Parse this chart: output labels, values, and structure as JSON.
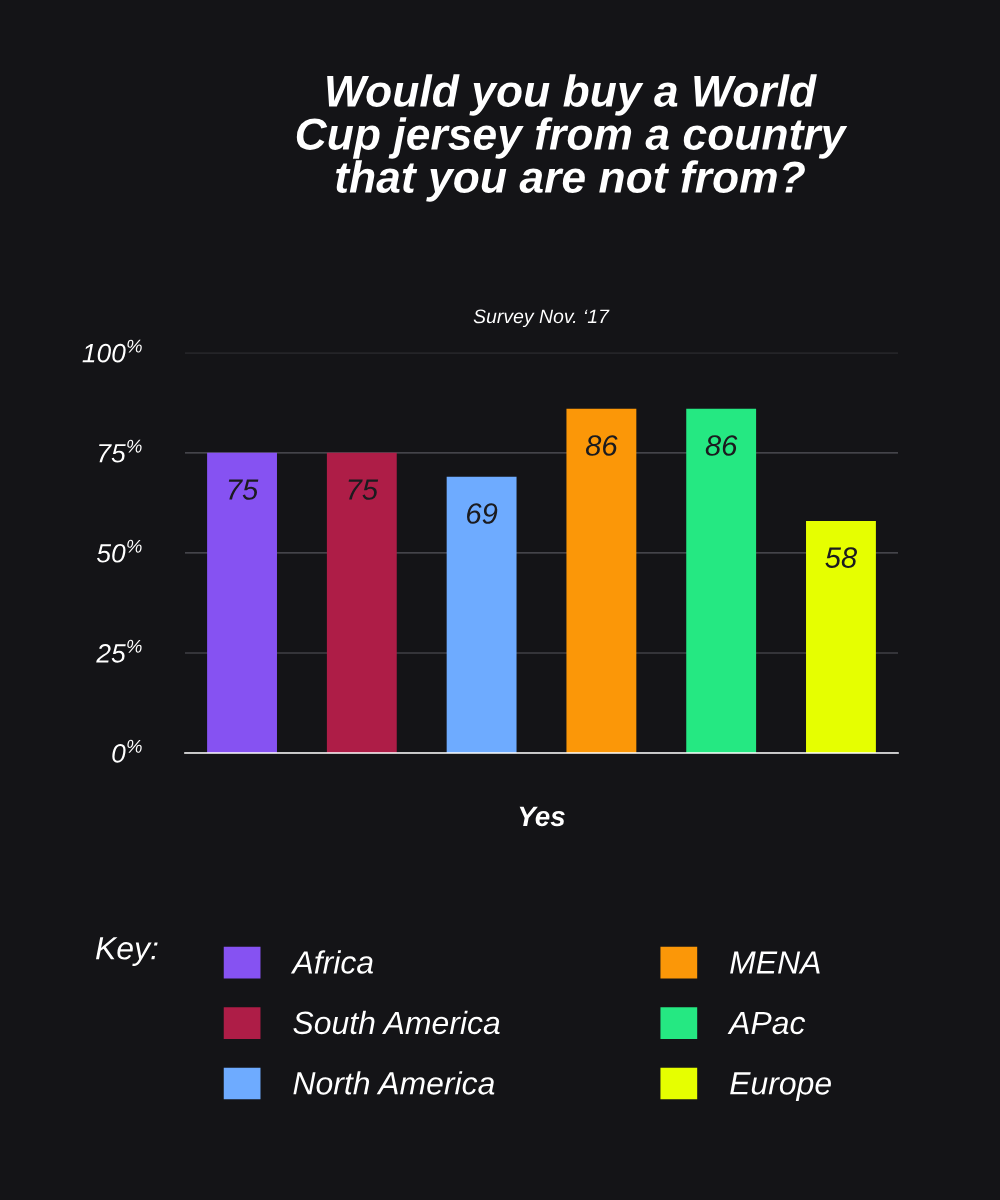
{
  "chart_data": {
    "type": "bar",
    "title": "Would you buy a World\nCup jersey from a country\nthat you are not from?",
    "subtitle": "Survey Nov. ‘17",
    "categories": [
      "Yes"
    ],
    "series": [
      {
        "name": "Africa",
        "color": "#8652f2",
        "values": [
          75
        ]
      },
      {
        "name": "South America",
        "color": "#ae1d47",
        "values": [
          75
        ]
      },
      {
        "name": "North America",
        "color": "#6eabff",
        "values": [
          69
        ]
      },
      {
        "name": "MENA",
        "color": "#fb9708",
        "values": [
          86
        ]
      },
      {
        "name": "APac",
        "color": "#25e882",
        "values": [
          86
        ]
      },
      {
        "name": "Europe",
        "color": "#e6ff00",
        "values": [
          58
        ]
      }
    ],
    "ylim": [
      0,
      100
    ],
    "yticks": [
      {
        "value": 0,
        "label": "0$^{%}$"
      },
      {
        "value": 25,
        "label": "25$^{%}$"
      },
      {
        "value": 50,
        "label": "50$^{%}$"
      },
      {
        "value": 75,
        "label": "75$^{%}$"
      },
      {
        "value": 100,
        "label": "100$^{%}$"
      }
    ],
    "grid": "y",
    "legend": "bottom",
    "legend_title": "Key:",
    "data_labels": true
  }
}
